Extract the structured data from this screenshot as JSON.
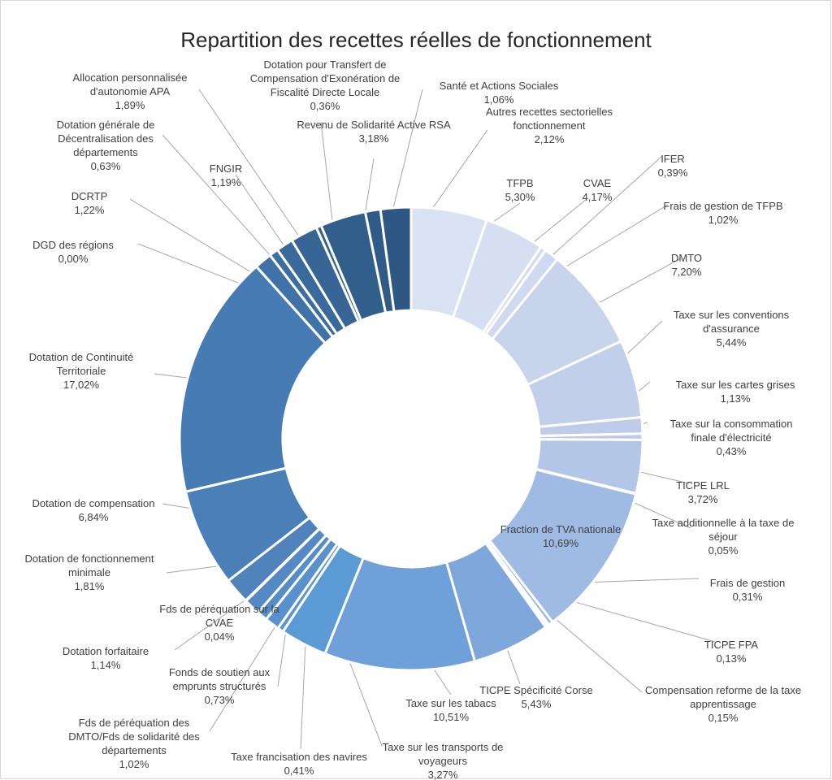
{
  "chart_data": {
    "type": "doughnut",
    "title": "Repartition des recettes réelles de fonctionnement",
    "categories": [
      "TFPB",
      "CVAE",
      "IFER",
      "Frais de gestion de TFPB",
      "DMTO",
      "Taxe sur les conventions d'assurance",
      "Taxe sur les cartes grises",
      "Taxe sur la consommation finale d'électricité",
      "TICPE LRL",
      "Taxe additionnelle à la taxe de séjour",
      "Fraction de TVA nationale",
      "Frais de gestion",
      "TICPE FPA",
      "Compensation reforme de la taxe apprentissage",
      "TICPE Spécificité Corse",
      "Taxe sur les tabacs",
      "Taxe sur les transports de voyageurs",
      "Taxe francisation des navires",
      "Fds de péréquation des DMTO/Fds de solidarité des départements",
      "Fonds de soutien aux emprunts structurés",
      "Dotation forfaitaire",
      "Fds de péréquation sur la CVAE",
      "Dotation de fonctionnement minimale",
      "Dotation de compensation",
      "Dotation de Continuité Territoriale",
      "DGD des régions",
      "DCRTP",
      "Dotation générale de Décentralisation des départements",
      "FNGIR",
      "Allocation personnalisée d'autonomie APA",
      "Dotation pour Transfert de Compensation d'Exonération de Fiscalité Directe Locale",
      "Revenu de Solidarité Active RSA",
      "Santé et Actions Sociales",
      "Autres recettes sectorielles fonctionnement"
    ],
    "values": [
      5.3,
      4.17,
      0.39,
      1.02,
      7.2,
      5.44,
      1.13,
      0.43,
      3.72,
      0.05,
      10.69,
      0.31,
      0.13,
      0.15,
      5.43,
      10.51,
      3.27,
      0.41,
      1.02,
      0.73,
      1.14,
      0.04,
      1.81,
      6.84,
      17.02,
      0.0,
      1.22,
      0.63,
      1.19,
      1.89,
      0.36,
      3.18,
      1.06,
      2.12
    ],
    "value_labels": [
      "5,30%",
      "4,17%",
      "0,39%",
      "1,02%",
      "7,20%",
      "5,44%",
      "1,13%",
      "0,43%",
      "3,72%",
      "0,05%",
      "10,69%",
      "0,31%",
      "0,13%",
      "0,15%",
      "5,43%",
      "10,51%",
      "3,27%",
      "0,41%",
      "1,02%",
      "0,73%",
      "1,14%",
      "0,04%",
      "1,81%",
      "6,84%",
      "17,02%",
      "0,00%",
      "1,22%",
      "0,63%",
      "1,19%",
      "1,89%",
      "0,36%",
      "3,18%",
      "1,06%",
      "2,12%"
    ],
    "colors": [
      "#d9e2f3",
      "#d5dff1",
      "#d2dcf0",
      "#cfd9ef",
      "#c8d4ec",
      "#c2cfea",
      "#bfcce9",
      "#bccae8",
      "#b3c6e7",
      "#adc2e6",
      "#9fbae3",
      "#98b4e0",
      "#93b1df",
      "#8eaddd",
      "#7ea7dc",
      "#70a0da",
      "#5b9bd5",
      "#5a95d0",
      "#5891cc",
      "#568dc7",
      "#5489c3",
      "#5286bf",
      "#5083bc",
      "#4a7fb8",
      "#467bb3",
      "#4376ad",
      "#4072a7",
      "#3d6ea2",
      "#3a6a9c",
      "#376696",
      "#346291",
      "#325e8c",
      "#305b88",
      "#2e5784"
    ]
  }
}
